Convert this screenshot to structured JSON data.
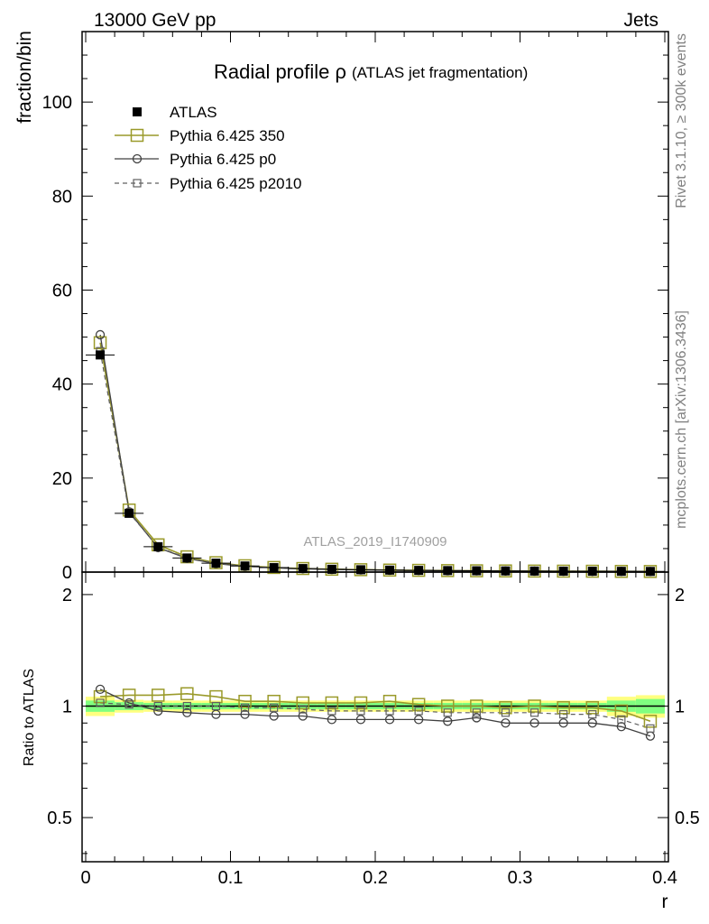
{
  "header": {
    "left": "13000 GeV pp",
    "right": "Jets"
  },
  "side_labels": {
    "rivet": "Rivet 3.1.10, ≥ 300k events",
    "mcplots": "mcplots.cern.ch [arXiv:1306.3436]"
  },
  "chart_data": [
    {
      "type": "scatter",
      "title": "Radial profile ρ",
      "subtitle": "(ATLAS jet fragmentation)",
      "watermark": "ATLAS_2019_I1740909",
      "ylabel": "fraction/bin",
      "xlim": [
        -0.0025,
        0.4025
      ],
      "ylim": [
        0,
        115
      ],
      "yticks": [
        0,
        20,
        40,
        60,
        80,
        100
      ],
      "x": [
        0.01,
        0.03,
        0.05,
        0.07,
        0.09,
        0.11,
        0.13,
        0.15,
        0.17,
        0.19,
        0.21,
        0.23,
        0.25,
        0.27,
        0.29,
        0.31,
        0.33,
        0.35,
        0.37,
        0.39
      ],
      "series": [
        {
          "name": "ATLAS",
          "color": "#000000",
          "marker": "filled-square",
          "values": [
            46.2,
            12.5,
            5.4,
            3.0,
            1.9,
            1.3,
            0.95,
            0.75,
            0.6,
            0.5,
            0.42,
            0.36,
            0.32,
            0.28,
            0.25,
            0.22,
            0.2,
            0.18,
            0.16,
            0.14
          ]
        },
        {
          "name": "Pythia 6.425 350",
          "color": "#9a9a2a",
          "marker": "open-square",
          "values": [
            48.8,
            13.2,
            5.8,
            3.25,
            2.0,
            1.35,
            0.98,
            0.76,
            0.61,
            0.51,
            0.43,
            0.37,
            0.32,
            0.28,
            0.25,
            0.22,
            0.2,
            0.18,
            0.15,
            0.13
          ]
        },
        {
          "name": "Pythia 6.425 p0",
          "color": "#404040",
          "marker": "open-circle",
          "values": [
            50.5,
            12.8,
            5.2,
            2.9,
            1.8,
            1.23,
            0.89,
            0.7,
            0.55,
            0.46,
            0.39,
            0.33,
            0.29,
            0.26,
            0.23,
            0.2,
            0.18,
            0.16,
            0.14,
            0.12
          ]
        },
        {
          "name": "Pythia 6.425 p2010",
          "color": "#606060",
          "marker": "open-square-small",
          "values": [
            47.0,
            12.6,
            5.3,
            3.0,
            1.9,
            1.28,
            0.94,
            0.74,
            0.58,
            0.49,
            0.41,
            0.35,
            0.31,
            0.27,
            0.24,
            0.21,
            0.19,
            0.17,
            0.15,
            0.12
          ]
        }
      ]
    },
    {
      "type": "scatter",
      "ylabel": "Ratio to ATLAS",
      "xlabel": "r",
      "xlim": [
        -0.0025,
        0.4025
      ],
      "ylim": [
        0.38,
        2.3
      ],
      "yticks": [
        0.5,
        1,
        2
      ],
      "ytick_labels": [
        "0.5",
        "1",
        "2"
      ],
      "xticks": [
        0,
        0.1,
        0.2,
        0.3,
        0.4
      ],
      "xtick_labels": [
        "0",
        "0.1",
        "0.2",
        "0.3",
        "0.4"
      ],
      "x": [
        0.01,
        0.03,
        0.05,
        0.07,
        0.09,
        0.11,
        0.13,
        0.15,
        0.17,
        0.19,
        0.21,
        0.23,
        0.25,
        0.27,
        0.29,
        0.31,
        0.33,
        0.35,
        0.37,
        0.39
      ],
      "band": {
        "inner_color": "#80ff80",
        "outer_color": "#ffff80",
        "inner": [
          0.035,
          0.025,
          0.02,
          0.02,
          0.02,
          0.02,
          0.02,
          0.02,
          0.02,
          0.02,
          0.02,
          0.02,
          0.02,
          0.02,
          0.02,
          0.02,
          0.02,
          0.02,
          0.035,
          0.045
        ],
        "outer": [
          0.06,
          0.04,
          0.035,
          0.035,
          0.035,
          0.035,
          0.035,
          0.035,
          0.035,
          0.035,
          0.035,
          0.035,
          0.035,
          0.035,
          0.035,
          0.035,
          0.035,
          0.035,
          0.06,
          0.07
        ]
      },
      "series": [
        {
          "name": "Pythia 6.425 350",
          "color": "#9a9a2a",
          "marker": "open-square",
          "values": [
            1.06,
            1.07,
            1.07,
            1.08,
            1.06,
            1.03,
            1.03,
            1.02,
            1.02,
            1.02,
            1.03,
            1.01,
            1.0,
            1.0,
            0.99,
            1.0,
            0.99,
            0.99,
            0.97,
            0.91
          ]
        },
        {
          "name": "Pythia 6.425 p0",
          "color": "#404040",
          "marker": "open-circle",
          "values": [
            1.11,
            1.02,
            0.97,
            0.96,
            0.95,
            0.95,
            0.94,
            0.94,
            0.92,
            0.92,
            0.92,
            0.92,
            0.91,
            0.93,
            0.9,
            0.9,
            0.9,
            0.9,
            0.88,
            0.83
          ]
        },
        {
          "name": "Pythia 6.425 p2010",
          "color": "#606060",
          "marker": "open-square-small",
          "values": [
            1.02,
            1.01,
            1.0,
            1.0,
            1.0,
            0.99,
            0.99,
            0.98,
            0.97,
            0.97,
            0.97,
            0.97,
            0.96,
            0.96,
            0.96,
            0.96,
            0.95,
            0.95,
            0.92,
            0.87
          ]
        }
      ]
    }
  ]
}
